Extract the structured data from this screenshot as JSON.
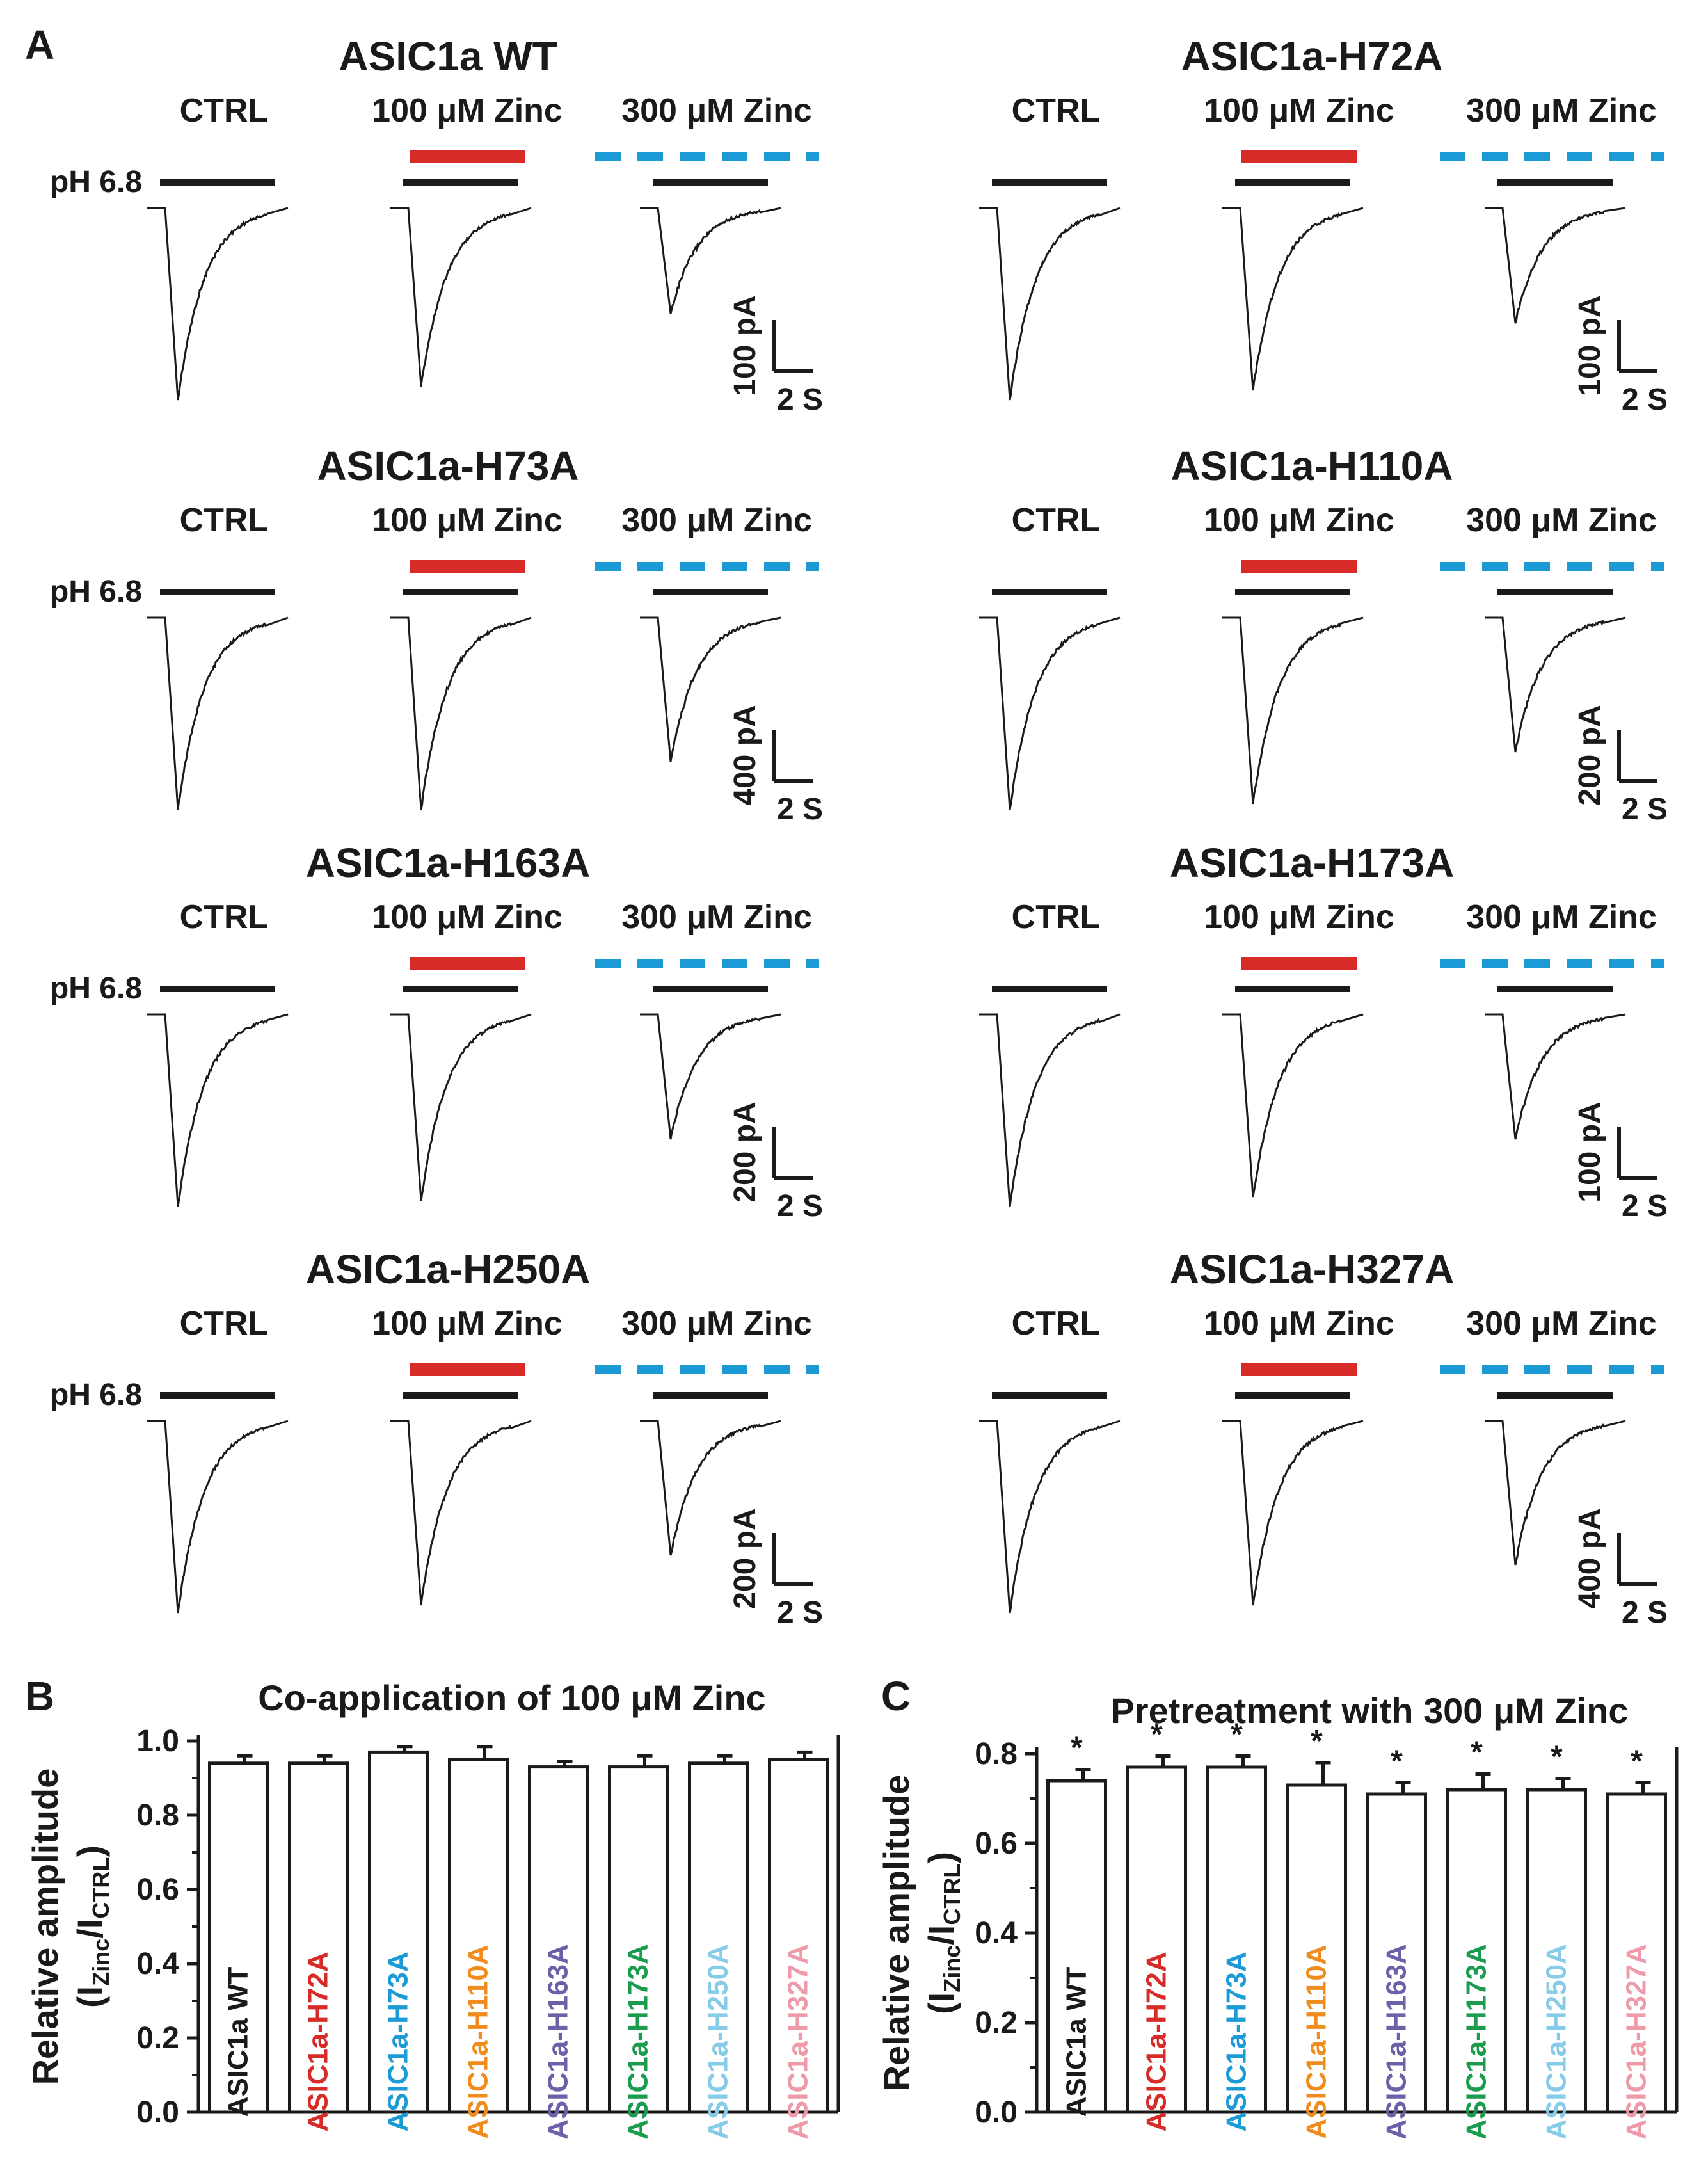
{
  "figure": {
    "panel_a_label": "A",
    "panel_b_label": "B",
    "panel_c_label": "C",
    "cond_ctrl": "CTRL",
    "cond_100": "100 μM Zinc",
    "cond_300": "300 μM Zinc",
    "ph_label": "pH 6.8",
    "time_scale": "2 S",
    "colors": {
      "zinc100": "#d72b27",
      "zinc300": "#1c9ad6",
      "ink": "#1a1a1a"
    }
  },
  "traces": [
    {
      "title": "ASIC1a WT",
      "current_scale": "100 pA",
      "rel_amp": [
        1.0,
        0.93,
        0.55
      ]
    },
    {
      "title": "ASIC1a-H72A",
      "current_scale": "100 pA",
      "rel_amp": [
        1.0,
        0.95,
        0.6
      ]
    },
    {
      "title": "ASIC1a-H73A",
      "current_scale": "400 pA",
      "rel_amp": [
        1.0,
        1.0,
        0.75
      ]
    },
    {
      "title": "ASIC1a-H110A",
      "current_scale": "200 pA",
      "rel_amp": [
        1.0,
        0.97,
        0.7
      ]
    },
    {
      "title": "ASIC1a-H163A",
      "current_scale": "200 pA",
      "rel_amp": [
        1.0,
        0.97,
        0.65
      ]
    },
    {
      "title": "ASIC1a-H173A",
      "current_scale": "100 pA",
      "rel_amp": [
        1.0,
        0.95,
        0.65
      ]
    },
    {
      "title": "ASIC1a-H250A",
      "current_scale": "200 pA",
      "rel_amp": [
        1.0,
        0.96,
        0.7
      ]
    },
    {
      "title": "ASIC1a-H327A",
      "current_scale": "400 pA",
      "rel_amp": [
        1.0,
        0.96,
        0.75
      ]
    }
  ],
  "chart_data": [
    {
      "type": "bar",
      "panel": "B",
      "title": "Co-application of 100 μM Zinc",
      "ylabel": "Relative amplitude",
      "ylabel_sub": "(I_Zinc/I_CTRL)",
      "ylabel_base": "(I",
      "ylabel_sub1": "Zinc",
      "ylabel_mid": "/I",
      "ylabel_sub2": "CTRL",
      "ylabel_end": ")",
      "ylim": [
        0,
        1.0
      ],
      "yticks": [
        "0.0",
        "0.2",
        "0.4",
        "0.6",
        "0.8",
        "1.0"
      ],
      "categories": [
        "ASIC1a WT",
        "ASIC1a-H72A",
        "ASIC1a-H73A",
        "ASIC1a-H110A",
        "ASIC1a-H163A",
        "ASIC1a-H173A",
        "ASIC1a-H250A",
        "ASIC1a-H327A"
      ],
      "category_colors": [
        "#1a1a1a",
        "#d72b27",
        "#1c9ad6",
        "#f08c1e",
        "#6f5fa8",
        "#1b9b4e",
        "#86cbe8",
        "#ee9aa8"
      ],
      "values": [
        0.94,
        0.94,
        0.97,
        0.95,
        0.93,
        0.93,
        0.94,
        0.95
      ],
      "errors": [
        0.02,
        0.02,
        0.015,
        0.035,
        0.015,
        0.03,
        0.02,
        0.02
      ],
      "significance": [
        "",
        "",
        "",
        "",
        "",
        "",
        "",
        ""
      ]
    },
    {
      "type": "bar",
      "panel": "C",
      "title": "Pretreatment with 300 μM Zinc",
      "ylabel": "Relative amplitude",
      "ylabel_sub": "(I_Zinc/I_CTRL)",
      "ylabel_base": "(I",
      "ylabel_sub1": "Zinc",
      "ylabel_mid": "/I",
      "ylabel_sub2": "CTRL",
      "ylabel_end": ")",
      "ylim": [
        0,
        0.8
      ],
      "yticks": [
        "0.0",
        "0.2",
        "0.4",
        "0.6",
        "0.8"
      ],
      "categories": [
        "ASIC1a WT",
        "ASIC1a-H72A",
        "ASIC1a-H73A",
        "ASIC1a-H110A",
        "ASIC1a-H163A",
        "ASIC1a-H173A",
        "ASIC1a-H250A",
        "ASIC1a-H327A"
      ],
      "category_colors": [
        "#1a1a1a",
        "#d72b27",
        "#1c9ad6",
        "#f08c1e",
        "#6f5fa8",
        "#1b9b4e",
        "#86cbe8",
        "#ee9aa8"
      ],
      "values": [
        0.74,
        0.77,
        0.77,
        0.73,
        0.71,
        0.72,
        0.72,
        0.71
      ],
      "errors": [
        0.025,
        0.025,
        0.025,
        0.05,
        0.025,
        0.035,
        0.025,
        0.025
      ],
      "significance": [
        "*",
        "*",
        "*",
        "*",
        "*",
        "*",
        "*",
        "*"
      ]
    }
  ]
}
